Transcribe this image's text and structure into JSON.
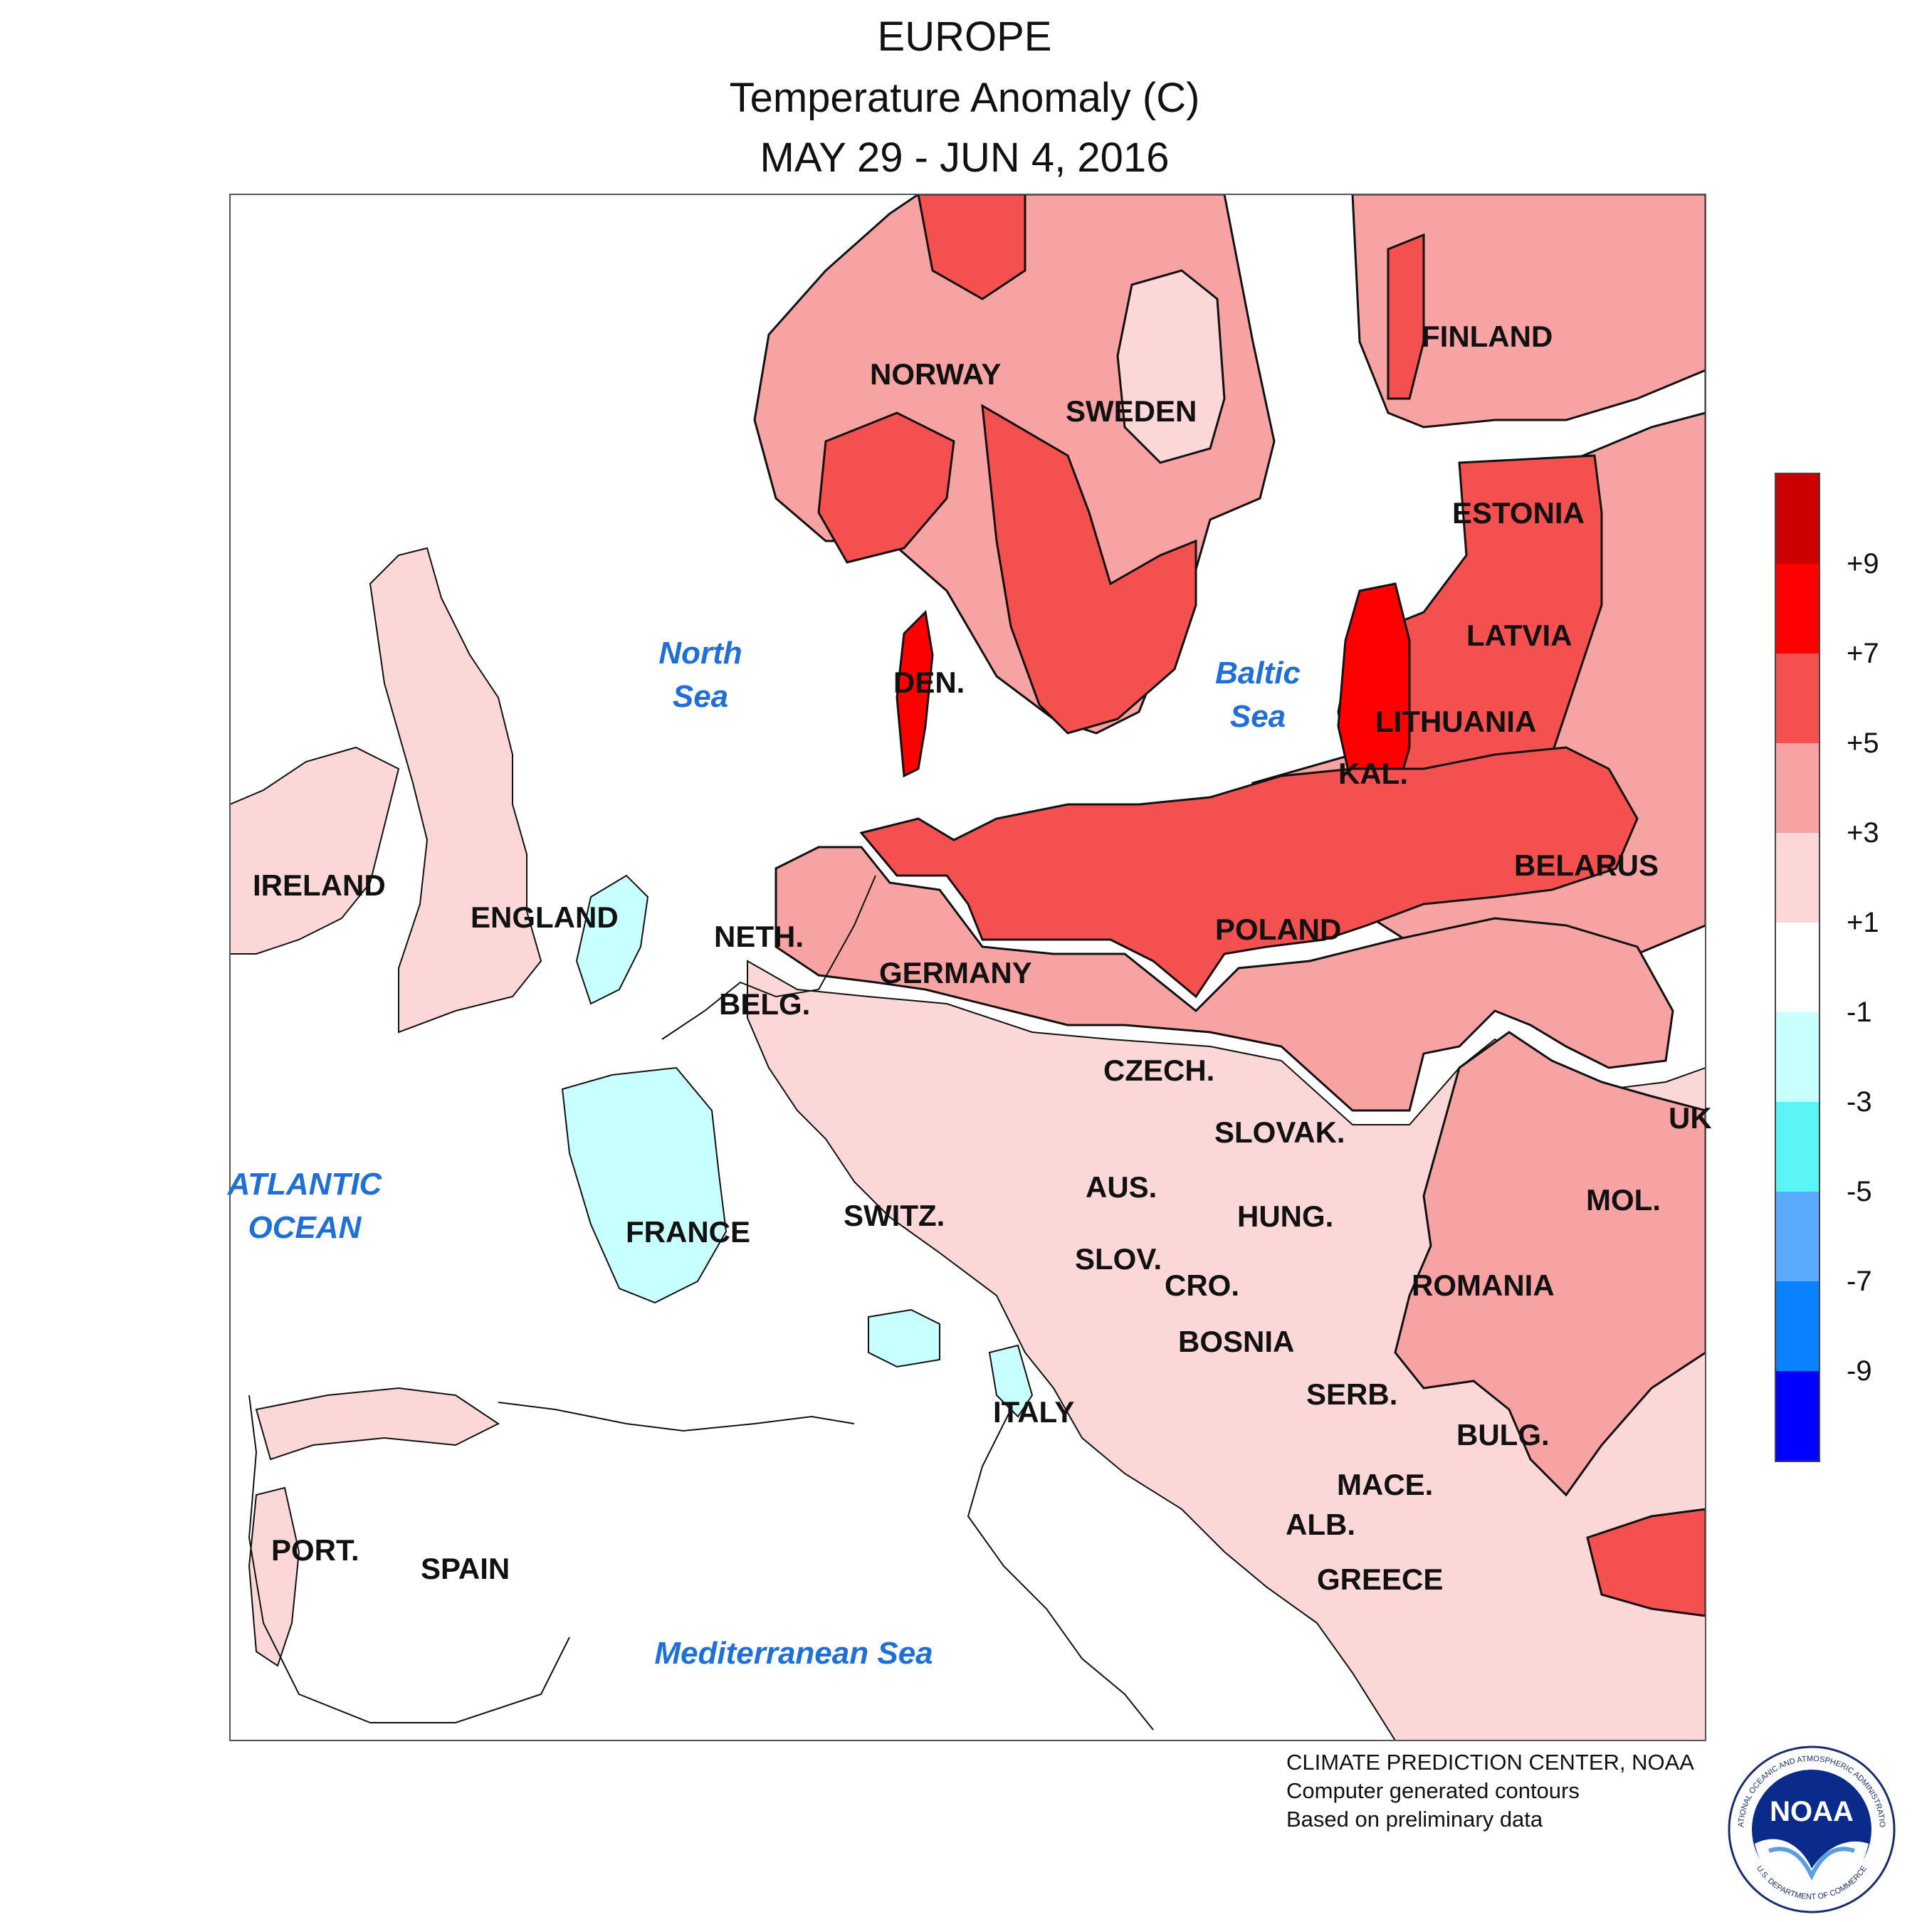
{
  "title": {
    "region": "EUROPE",
    "variable": "Temperature Anomaly (C)",
    "period": "MAY 29 - JUN 4, 2016"
  },
  "country_labels": [
    "NORWAY",
    "SWEDEN",
    "FINLAND",
    "ESTONIA",
    "LATVIA",
    "LITHUANIA",
    "KAL.",
    "DEN.",
    "IRELAND",
    "ENGLAND",
    "NETH.",
    "BELG.",
    "GERMANY",
    "POLAND",
    "BELARUS",
    "CZECH.",
    "SLOVAK.",
    "UK",
    "AUS.",
    "SWITZ.",
    "FRANCE",
    "HUNG.",
    "MOL.",
    "SLOV.",
    "CRO.",
    "ROMANIA",
    "BOSNIA",
    "SERB.",
    "ITALY",
    "BULG.",
    "MACE.",
    "ALB.",
    "GREECE",
    "PORT.",
    "SPAIN"
  ],
  "water_labels": [
    "North",
    "Sea",
    "Baltic",
    "Sea",
    "ATLANTIC",
    "OCEAN",
    "Mediterranean Sea"
  ],
  "legend": {
    "ticks": [
      "+9",
      "+7",
      "+5",
      "+3",
      "+1",
      "-1",
      "-3",
      "-5",
      "-7",
      "-9"
    ],
    "colors": [
      "#cc0000",
      "#ff0000",
      "#f45050",
      "#f8a3a3",
      "#fbd7d7",
      "#ffffff",
      "#c8ffff",
      "#5cf5f5",
      "#5aaaff",
      "#0a82ff",
      "#0000ff"
    ]
  },
  "anomaly_colors": {
    "plus_1_to_3": "#fbd7d7",
    "plus_3_to_5": "#f8a3a3",
    "plus_5_to_7": "#f45050",
    "plus_7_to_9": "#ff0000",
    "minus_1_to_3": "#c8ffff"
  },
  "credits": {
    "line1": "CLIMATE PREDICTION CENTER, NOAA",
    "line2": "Computer generated contours",
    "line3": "Based on preliminary data"
  },
  "logo": {
    "text": "NOAA",
    "ring_top": "NATIONAL OCEANIC AND ATMOSPHERIC ADMINISTRATION",
    "ring_bottom": "U.S. DEPARTMENT OF COMMERCE"
  }
}
